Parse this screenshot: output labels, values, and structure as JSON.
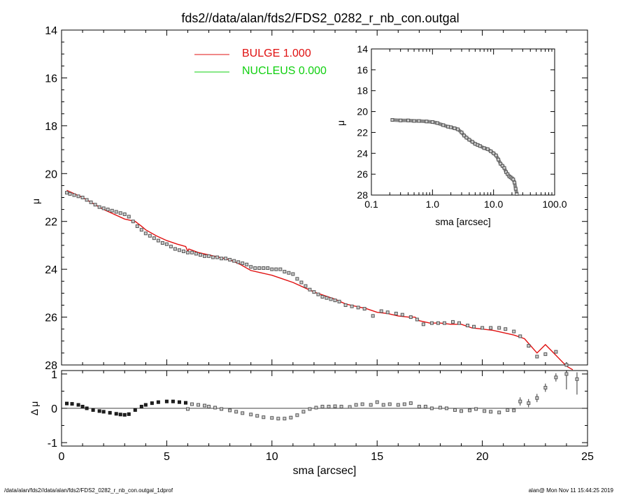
{
  "title": "fds2//data/alan/fds2/FDS2_0282_r_nb_con.outgal",
  "footer_left": "/data/alan/fds2//data/alan/fds2/FDS2_0282_r_nb_con.outgal_1dprof",
  "footer_right": "alan@  Mon Nov 11 15:44:25 2019",
  "colors": {
    "bulge": "#e01010",
    "nucleus": "#10d010",
    "points": "#555555",
    "axes": "#000000"
  },
  "chart_data": [
    {
      "type": "scatter",
      "name": "main-profile",
      "xlabel": "sma [arcsec]",
      "ylabel": "μ",
      "xlim": [
        0,
        25
      ],
      "ylim": [
        28,
        14
      ],
      "y_inverted": true,
      "xticks": [
        0,
        5,
        10,
        15,
        20,
        25
      ],
      "yticks": [
        14,
        16,
        18,
        20,
        22,
        24,
        26,
        28
      ],
      "legend": [
        {
          "label": "BULGE  1.000",
          "color": "#e01010"
        },
        {
          "label": "NUCLEUS  0.000",
          "color": "#10d010"
        }
      ],
      "legend_position": "top-center",
      "series": [
        {
          "kind": "points",
          "x": [
            0.25,
            0.4,
            0.6,
            0.8,
            1.0,
            1.2,
            1.4,
            1.6,
            1.8,
            2.0,
            2.2,
            2.4,
            2.6,
            2.8,
            3.0,
            3.2,
            3.4,
            3.6,
            3.8,
            4.0,
            4.2,
            4.4,
            4.6,
            4.8,
            5.0,
            5.2,
            5.4,
            5.6,
            5.8,
            6.0,
            6.2,
            6.4,
            6.6,
            6.8,
            7.0,
            7.2,
            7.4,
            7.6,
            7.8,
            8.0,
            8.2,
            8.4,
            8.6,
            8.8,
            9.0,
            9.2,
            9.4,
            9.6,
            9.8,
            10.0,
            10.2,
            10.4,
            10.6,
            10.8,
            11.0,
            11.2,
            11.4,
            11.6,
            11.8,
            12.0,
            12.2,
            12.4,
            12.6,
            12.8,
            13.0,
            13.2,
            13.5,
            13.8,
            14.1,
            14.4,
            14.8,
            15.2,
            15.5,
            15.9,
            16.2,
            16.6,
            16.9,
            17.2,
            17.6,
            17.9,
            18.2,
            18.6,
            18.9,
            19.3,
            19.6,
            20.0,
            20.4,
            20.8,
            21.1,
            21.5,
            21.8,
            22.2,
            22.6,
            23.0,
            23.5,
            24.0
          ],
          "y": [
            20.8,
            20.85,
            20.9,
            20.95,
            21.0,
            21.1,
            21.2,
            21.3,
            21.4,
            21.45,
            21.5,
            21.55,
            21.6,
            21.65,
            21.7,
            21.8,
            22.0,
            22.2,
            22.35,
            22.5,
            22.6,
            22.7,
            22.8,
            22.9,
            22.95,
            23.05,
            23.15,
            23.2,
            23.25,
            23.3,
            23.3,
            23.35,
            23.4,
            23.45,
            23.45,
            23.5,
            23.5,
            23.55,
            23.55,
            23.6,
            23.65,
            23.7,
            23.75,
            23.8,
            23.9,
            23.95,
            23.95,
            23.95,
            23.95,
            24.0,
            24.0,
            24.0,
            24.1,
            24.15,
            24.2,
            24.4,
            24.55,
            24.7,
            24.85,
            24.95,
            25.05,
            25.15,
            25.2,
            25.25,
            25.3,
            25.35,
            25.5,
            25.55,
            25.6,
            25.65,
            25.95,
            25.75,
            25.8,
            25.85,
            25.9,
            26.0,
            26.1,
            26.3,
            26.25,
            26.25,
            26.25,
            26.2,
            26.25,
            26.35,
            26.4,
            26.45,
            26.45,
            26.45,
            26.5,
            26.6,
            26.8,
            27.2,
            27.65,
            27.55,
            27.45,
            28.0
          ]
        },
        {
          "kind": "line",
          "name": "BULGE",
          "x": [
            0.25,
            1.0,
            2.0,
            3.0,
            3.5,
            3.8,
            4.0,
            4.5,
            5.0,
            5.5,
            5.9,
            6.0,
            6.05,
            6.5,
            7.0,
            7.5,
            8.0,
            8.5,
            9.0,
            9.5,
            10.0,
            10.5,
            11.0,
            11.5,
            12.0,
            12.5,
            13.0,
            13.5,
            14.0,
            14.5,
            15.0,
            15.5,
            16.0,
            16.5,
            16.8,
            17.0,
            17.5,
            18.0,
            18.5,
            19.0,
            19.5,
            20.0,
            20.5,
            21.0,
            21.5,
            22.0,
            22.6,
            23.0,
            23.5,
            24.0,
            24.3
          ],
          "y": [
            20.7,
            21.0,
            21.5,
            21.9,
            22.0,
            22.2,
            22.35,
            22.6,
            22.8,
            22.95,
            23.05,
            23.25,
            23.15,
            23.3,
            23.4,
            23.5,
            23.6,
            23.8,
            24.05,
            24.15,
            24.25,
            24.4,
            24.55,
            24.75,
            24.95,
            25.1,
            25.25,
            25.45,
            25.55,
            25.65,
            25.8,
            25.85,
            25.95,
            26.0,
            26.0,
            26.15,
            26.25,
            26.25,
            26.3,
            26.3,
            26.45,
            26.5,
            26.55,
            26.65,
            26.75,
            26.9,
            27.5,
            27.15,
            27.6,
            28.05,
            28.3
          ]
        }
      ]
    },
    {
      "type": "scatter",
      "name": "inset-log-profile",
      "xlabel": "sma [arcsec]",
      "ylabel": "μ",
      "xscale": "log",
      "xlim": [
        0.1,
        100
      ],
      "ylim": [
        28,
        14
      ],
      "y_inverted": true,
      "xtick_labels": [
        "0.1",
        "1.0",
        "10.0",
        "100.0"
      ],
      "xtick_values": [
        0.1,
        1,
        10,
        100
      ],
      "yticks": [
        14,
        16,
        18,
        20,
        22,
        24,
        26,
        28
      ],
      "series": [
        {
          "kind": "points",
          "x": [
            0.22,
            0.3,
            0.4,
            0.5,
            0.6,
            0.8,
            1.0,
            1.2,
            1.5,
            1.8,
            2.0,
            2.3,
            2.6,
            3.0,
            3.3,
            3.6,
            4.0,
            4.5,
            5.0,
            5.5,
            6.0,
            7.0,
            8.0,
            9.0,
            10.0,
            11.0,
            12.0,
            13.0,
            14.0,
            15.0,
            16.0,
            17.0,
            18.0,
            19.0,
            20.0,
            21.0,
            22.0,
            23.0,
            24.0
          ],
          "y": [
            20.8,
            20.85,
            20.85,
            20.9,
            20.9,
            20.95,
            21.0,
            21.1,
            21.3,
            21.45,
            21.5,
            21.6,
            21.7,
            22.0,
            22.3,
            22.5,
            22.7,
            22.9,
            23.1,
            23.2,
            23.3,
            23.5,
            23.6,
            23.8,
            24.0,
            24.2,
            24.6,
            25.0,
            25.2,
            25.4,
            25.8,
            26.0,
            26.2,
            26.3,
            26.4,
            26.5,
            26.8,
            27.4,
            27.9
          ]
        }
      ]
    },
    {
      "type": "scatter",
      "name": "residuals",
      "xlabel": "sma [arcsec]",
      "ylabel": "Δ μ",
      "xlim": [
        0,
        25
      ],
      "ylim": [
        -1.1,
        1.1
      ],
      "yticks": [
        -1,
        0,
        1
      ],
      "xticks": [
        0,
        5,
        10,
        15,
        20,
        25
      ],
      "series": [
        {
          "kind": "points",
          "x": [
            0.25,
            0.5,
            0.8,
            1.0,
            1.2,
            1.5,
            1.8,
            2.0,
            2.3,
            2.6,
            2.8,
            3.0,
            3.2,
            3.5,
            3.8,
            4.0,
            4.3,
            4.6,
            5.0,
            5.3,
            5.6,
            5.9,
            6.0,
            6.2,
            6.5,
            6.8,
            7.0,
            7.3,
            7.6,
            8.0,
            8.3,
            8.6,
            9.0,
            9.3,
            9.6,
            10.0,
            10.3,
            10.6,
            10.9,
            11.2,
            11.5,
            11.8,
            12.1,
            12.4,
            12.7,
            13.0,
            13.3,
            13.7,
            14.0,
            14.3,
            14.7,
            15.0,
            15.3,
            15.6,
            16.0,
            16.3,
            16.6,
            17.0,
            17.3,
            17.6,
            18.0,
            18.3,
            18.7,
            19.0,
            19.4,
            19.7,
            20.1,
            20.4,
            20.8,
            21.2,
            21.5,
            21.8,
            22.2,
            22.6,
            23.0,
            23.5,
            24.0,
            24.5
          ],
          "y": [
            0.14,
            0.13,
            0.1,
            0.05,
            0.0,
            -0.05,
            -0.08,
            -0.1,
            -0.13,
            -0.16,
            -0.18,
            -0.19,
            -0.17,
            -0.05,
            0.05,
            0.1,
            0.15,
            0.18,
            0.2,
            0.2,
            0.18,
            0.16,
            -0.02,
            0.12,
            0.1,
            0.08,
            0.05,
            0.02,
            -0.02,
            -0.06,
            -0.1,
            -0.14,
            -0.18,
            -0.22,
            -0.26,
            -0.28,
            -0.3,
            -0.3,
            -0.27,
            -0.2,
            -0.1,
            -0.02,
            0.02,
            0.05,
            0.05,
            0.06,
            0.05,
            0.04,
            0.1,
            0.12,
            0.1,
            0.18,
            0.1,
            0.12,
            0.1,
            0.12,
            0.15,
            0.05,
            0.05,
            0.0,
            0.02,
            0.0,
            -0.05,
            -0.08,
            -0.06,
            -0.02,
            -0.08,
            -0.1,
            -0.12,
            -0.05,
            -0.06,
            0.2,
            0.15,
            0.3,
            0.6,
            0.9,
            1.0,
            0.85
          ]
        }
      ]
    }
  ]
}
